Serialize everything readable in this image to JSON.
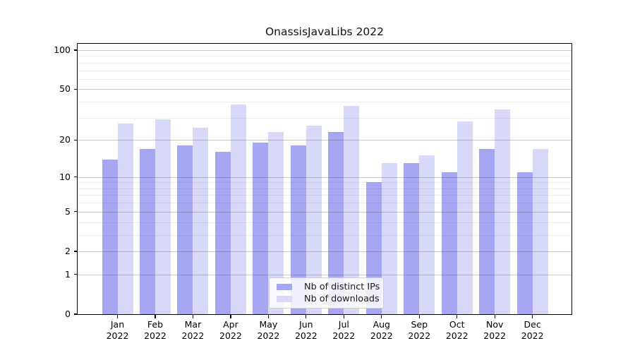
{
  "figure": {
    "title": "OnassisJavaLibs 2022",
    "background_color": "#ffffff"
  },
  "chart_data": {
    "type": "bar",
    "title": "OnassisJavaLibs 2022",
    "xlabel": "",
    "ylabel": "",
    "categories": [
      "Jan 2022",
      "Feb 2022",
      "Mar 2022",
      "Apr 2022",
      "May 2022",
      "Jun 2022",
      "Jul 2022",
      "Aug 2022",
      "Sep 2022",
      "Oct 2022",
      "Nov 2022",
      "Dec 2022"
    ],
    "series": [
      {
        "name": "Nb of distinct IPs",
        "color": "#a6a6f2",
        "values": [
          14,
          17,
          18,
          16,
          19,
          18,
          23,
          9,
          13,
          11,
          17,
          11
        ]
      },
      {
        "name": "Nb of downloads",
        "color": "#d8d8f8",
        "values": [
          27,
          29,
          25,
          38,
          23,
          26,
          37,
          13,
          15,
          28,
          35,
          17
        ]
      }
    ],
    "yscale": "log1p",
    "ylim": [
      0,
      112
    ],
    "y_major_ticks": [
      0,
      1,
      2,
      5,
      10,
      20,
      50,
      100
    ],
    "y_minor_ticks": [
      3,
      4,
      6,
      7,
      8,
      9,
      30,
      40,
      60,
      70,
      80,
      90
    ],
    "grid": "horizontal",
    "legend_position": "lower center",
    "colors": {
      "bar_ips": "#a6a6f2",
      "bar_downloads": "#d8d8f8",
      "grid_major": "#c9c9c9",
      "grid_minor": "#ececec",
      "axis": "#000000",
      "text": "#111111"
    }
  }
}
